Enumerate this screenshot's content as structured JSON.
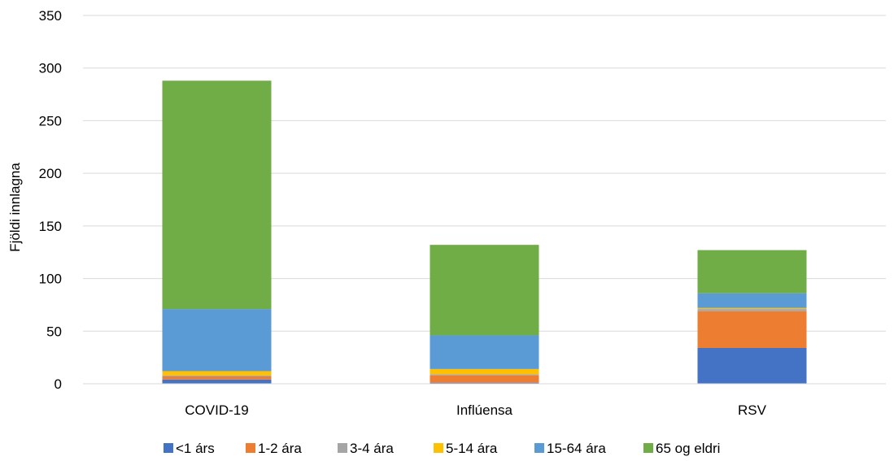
{
  "chart_data": {
    "type": "bar",
    "stacked": true,
    "title": "",
    "xlabel": "",
    "ylabel": "Fjöldi innlagna",
    "ylim": [
      0,
      350
    ],
    "yticks": [
      0,
      50,
      100,
      150,
      200,
      250,
      300,
      350
    ],
    "grid": true,
    "legend_position": "bottom",
    "categories": [
      "COVID-19",
      "Inflúensa",
      "RSV"
    ],
    "series": [
      {
        "name": "<1 árs",
        "color": "#4472C4",
        "values": [
          4,
          1,
          34
        ]
      },
      {
        "name": "1-2 ára",
        "color": "#ED7D31",
        "values": [
          3,
          7,
          35
        ]
      },
      {
        "name": "3-4 ára",
        "color": "#A5A5A5",
        "values": [
          1,
          1,
          2
        ]
      },
      {
        "name": "5-14 ára",
        "color": "#FFC000",
        "values": [
          4,
          5,
          1
        ]
      },
      {
        "name": "15-64 ára",
        "color": "#5B9BD5",
        "values": [
          59,
          32,
          14
        ]
      },
      {
        "name": "65 og eldri",
        "color": "#70AD47",
        "values": [
          217,
          86,
          41
        ]
      }
    ]
  }
}
